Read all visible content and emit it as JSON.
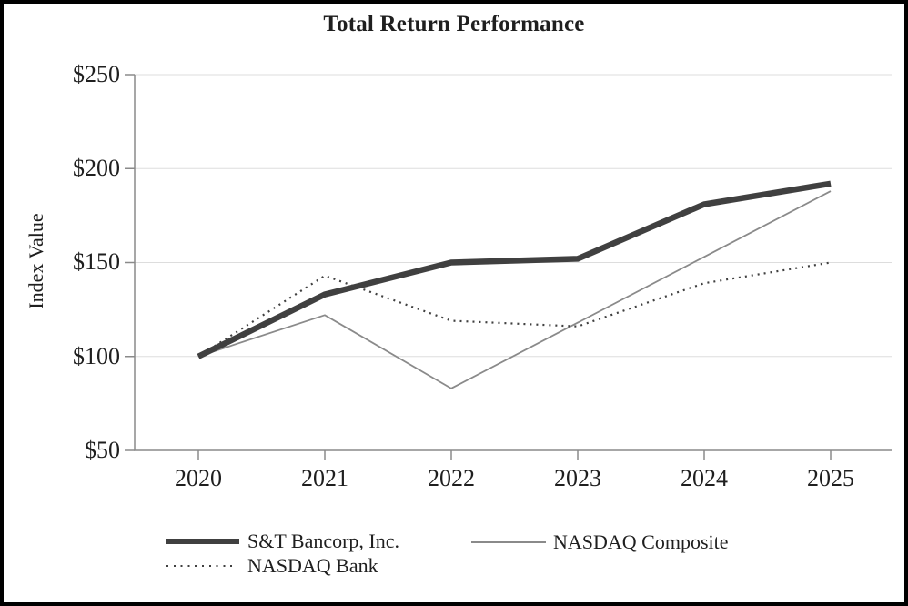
{
  "title": "Total Return Performance",
  "y_axis": {
    "label": "Index Value"
  },
  "x_axis": {
    "tick_labels": [
      "2020",
      "2021",
      "2022",
      "2023",
      "2024",
      "2025"
    ]
  },
  "colors": {
    "background": "#ffffff",
    "border": "#000000",
    "text": "#1f1f1f",
    "gridline": "#dddddd",
    "axis": "#8a8a8a",
    "st_bancorp_line": "#404040",
    "nasdaq_composite_line": "#8a8a8a",
    "nasdaq_bank_line": "#404040"
  },
  "chart_data": {
    "type": "line",
    "title": "Total Return Performance",
    "xlabel": "",
    "ylabel": "Index Value",
    "categories": [
      2020,
      2021,
      2022,
      2023,
      2024,
      2025
    ],
    "ylim": [
      50,
      250
    ],
    "yticks": [
      250,
      200,
      150,
      100,
      50
    ],
    "ytick_labels": [
      "$250",
      "$200",
      "$150",
      "$100",
      "$50"
    ],
    "grid": true,
    "legend_position": "bottom-left",
    "series": [
      {
        "name": "S&T Bancorp, Inc.",
        "style": "thick-solid",
        "color": "#404040",
        "values": [
          100,
          133,
          150,
          152,
          181,
          192
        ]
      },
      {
        "name": "NASDAQ Composite",
        "style": "thin-solid",
        "color": "#8a8a8a",
        "values": [
          100,
          122,
          83,
          118,
          153,
          188
        ]
      },
      {
        "name": "NASDAQ Bank",
        "style": "dotted",
        "color": "#404040",
        "values": [
          100,
          143,
          119,
          116,
          139,
          150
        ]
      }
    ]
  }
}
